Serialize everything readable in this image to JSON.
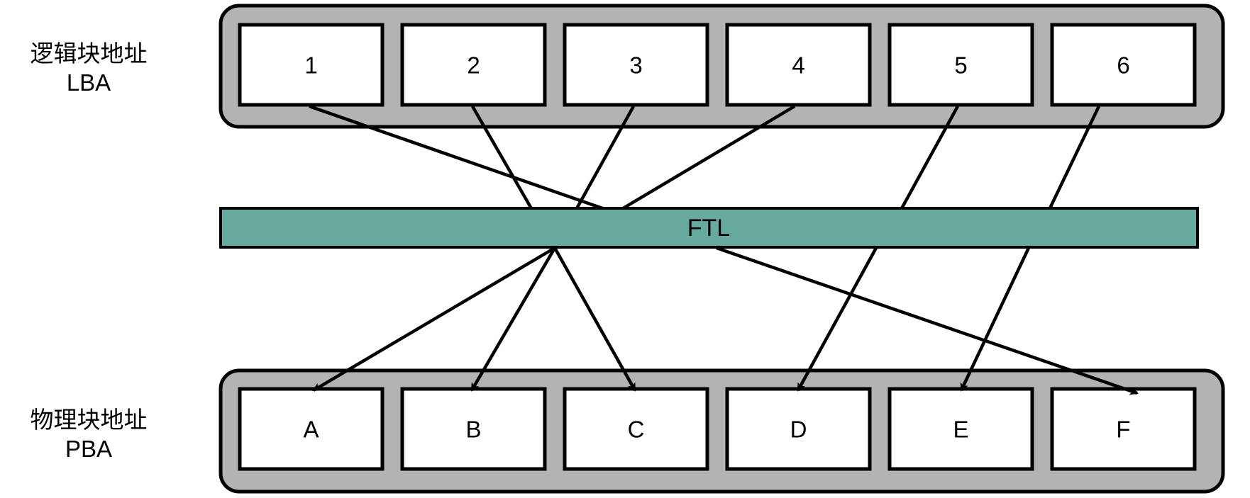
{
  "lba": {
    "label_line1": "逻辑块地址",
    "label_line2": "LBA",
    "blocks": [
      "1",
      "2",
      "3",
      "4",
      "5",
      "6"
    ]
  },
  "pba": {
    "label_line1": "物理块地址",
    "label_line2": "PBA",
    "blocks": [
      "A",
      "B",
      "C",
      "D",
      "E",
      "F"
    ]
  },
  "ftl": {
    "label": "FTL"
  },
  "mapping": [
    {
      "from": "1",
      "to": "F"
    },
    {
      "from": "2",
      "to": "C"
    },
    {
      "from": "3",
      "to": "B"
    },
    {
      "from": "4",
      "to": "A"
    },
    {
      "from": "5",
      "to": "D"
    },
    {
      "from": "6",
      "to": "E"
    }
  ],
  "colors": {
    "container_fill": "#b3b3b3",
    "ftl_fill": "#67ab9f",
    "box_fill": "#ffffff",
    "stroke": "#000000"
  }
}
